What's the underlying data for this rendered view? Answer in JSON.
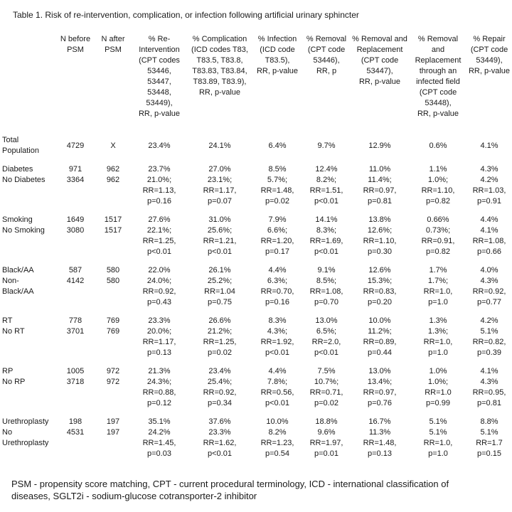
{
  "title": "Table 1. Risk of re-intervention, complication, or infection following artificial urinary sphincter",
  "footnote": "PSM - propensity score matching, CPT - current procedural terminology, ICD - international classification of\ndiseases, SGLT2i - sodium-glucose cotransporter-2 inhibitor",
  "table": {
    "columns": [
      "",
      "N before\nPSM",
      "N after\nPSM",
      "% Re-\nIntervention\n(CPT codes\n53446,\n53447,\n53448,\n53449),\nRR, p-value",
      "% Complication\n(ICD codes T83,\nT83.5, T83.8,\nT83.83, T83.84,\nT83.89, T83.9),\nRR, p-value",
      "% Infection\n(ICD code\nT83.5),\nRR, p-value",
      "% Removal\n(CPT code\n53446),\nRR, p",
      "% Removal and\nReplacement\n(CPT code\n53447),\nRR, p-value",
      "% Removal\nand\nReplacement\nthrough an\ninfected field\n(CPT code\n53448),\nRR, p-value",
      "% Repair\n(CPT code\n53449),\nRR, p-value"
    ],
    "sections": [
      {
        "name": "total-population",
        "cells": [
          "Total\nPopulation",
          "4729",
          "X",
          "23.4%",
          "24.1%",
          "6.4%",
          "9.7%",
          "12.9%",
          "0.6%",
          "4.1%"
        ]
      },
      {
        "name": "diabetes",
        "cells": [
          "Diabetes\nNo Diabetes",
          "971\n3364",
          "962\n962",
          "23.7%\n21.0%;\nRR=1.13,\np=0.16",
          "27.0%\n23.1%;\nRR=1.17,\np=0.07",
          "8.5%\n5.7%;\nRR=1.48,\np=0.02",
          "12.4%\n8.2%;\nRR=1.51,\np<0.01",
          "11.0%\n11.4%;\nRR=0.97,\np=0.81",
          "1.1%\n1.0%;\nRR=1.10,\np=0.82",
          "4.3%\n4.2%\nRR=1.03,\np=0.91"
        ]
      },
      {
        "name": "smoking",
        "cells": [
          "Smoking\nNo Smoking",
          "1649\n3080",
          "1517\n1517",
          "27.6%\n22.1%;\nRR=1.25,\np<0.01",
          "31.0%\n25.6%;\nRR=1.21,\np<0.01",
          "7.9%\n6.6%;\nRR=1.20,\np=0.17",
          "14.1%\n8.3%;\nRR=1.69,\np<0.01",
          "13.8%\n12.6%;\nRR=1.10,\np=0.30",
          "0.66%\n0.73%;\nRR=0.91,\np=0.82",
          "4.4%\n4.1%\nRR=1.08,\np=0.66"
        ]
      },
      {
        "name": "black-aa",
        "cells": [
          "Black/AA\nNon-\nBlack/AA",
          "587\n4142",
          "580\n580",
          "22.0%\n24.0%;\nRR=0.92,\np=0.43",
          "26.1%\n25.2%;\nRR=1.04\np=0.75",
          "4.4%\n6.3%;\nRR=0.70,\np=0.16",
          "9.1%\n8.5%;\nRR=1.08,\np=0.70",
          "12.6%\n15.3%;\nRR=0.83,\np=0.20",
          "1.7%\n1.7%;\nRR=1.0,\np=1.0",
          "4.0%\n4.3%\nRR=0.92,\np=0.77"
        ]
      },
      {
        "name": "rt",
        "cells": [
          "RT\nNo RT",
          "778\n3701",
          "769\n769",
          "23.3%\n20.0%;\nRR=1.17,\np=0.13",
          "26.6%\n21.2%;\nRR=1.25,\np=0.02",
          "8.3%\n4.3%;\nRR=1.92,\np<0.01",
          "13.0%\n6.5%;\nRR=2.0,\np<0.01",
          "10.0%\n11.2%;\nRR=0.89,\np=0.44",
          "1.3%\n1.3%;\nRR=1.0,\np=1.0",
          "4.2%\n5.1%\nRR=0.82,\np=0.39"
        ]
      },
      {
        "name": "rp",
        "cells": [
          "RP\nNo RP",
          "1005\n3718",
          "972\n972",
          "21.3%\n24.3%;\nRR=0.88,\np=0.12",
          "23.4%\n25.4%;\nRR=0.92,\np=0.34",
          "4.4%\n7.8%;\nRR=0.56,\np<0.01",
          "7.5%\n10.7%;\nRR=0.71,\np=0.02",
          "13.0%\n13.4%;\nRR=0.97,\np=0.76",
          "1.0%\n1.0%;\nRR=1.0\np=0.99",
          "4.1%\n4.3%\nRR=0.95,\np=0.81"
        ]
      },
      {
        "name": "urethroplasty",
        "cells": [
          "Urethroplasty\nNo\nUrethroplasty",
          "198\n4531",
          "197\n197",
          "35.1%\n24.2%\nRR=1.45,\np=0.03",
          "37.6%\n23.3%\nRR=1.62,\np<0.01",
          "10.0%\n8.2%\nRR=1.23,\np=0.54",
          "18.8%\n9.6%\nRR=1.97,\np=0.01",
          "16.7%\n11.3%\nRR=1.48,\np=0.13",
          "5.1%\n5.1%\nRR=1.0,\np=1.0",
          "8.8%\n5.1%\nRR=1.7\np=0.15"
        ]
      }
    ]
  }
}
